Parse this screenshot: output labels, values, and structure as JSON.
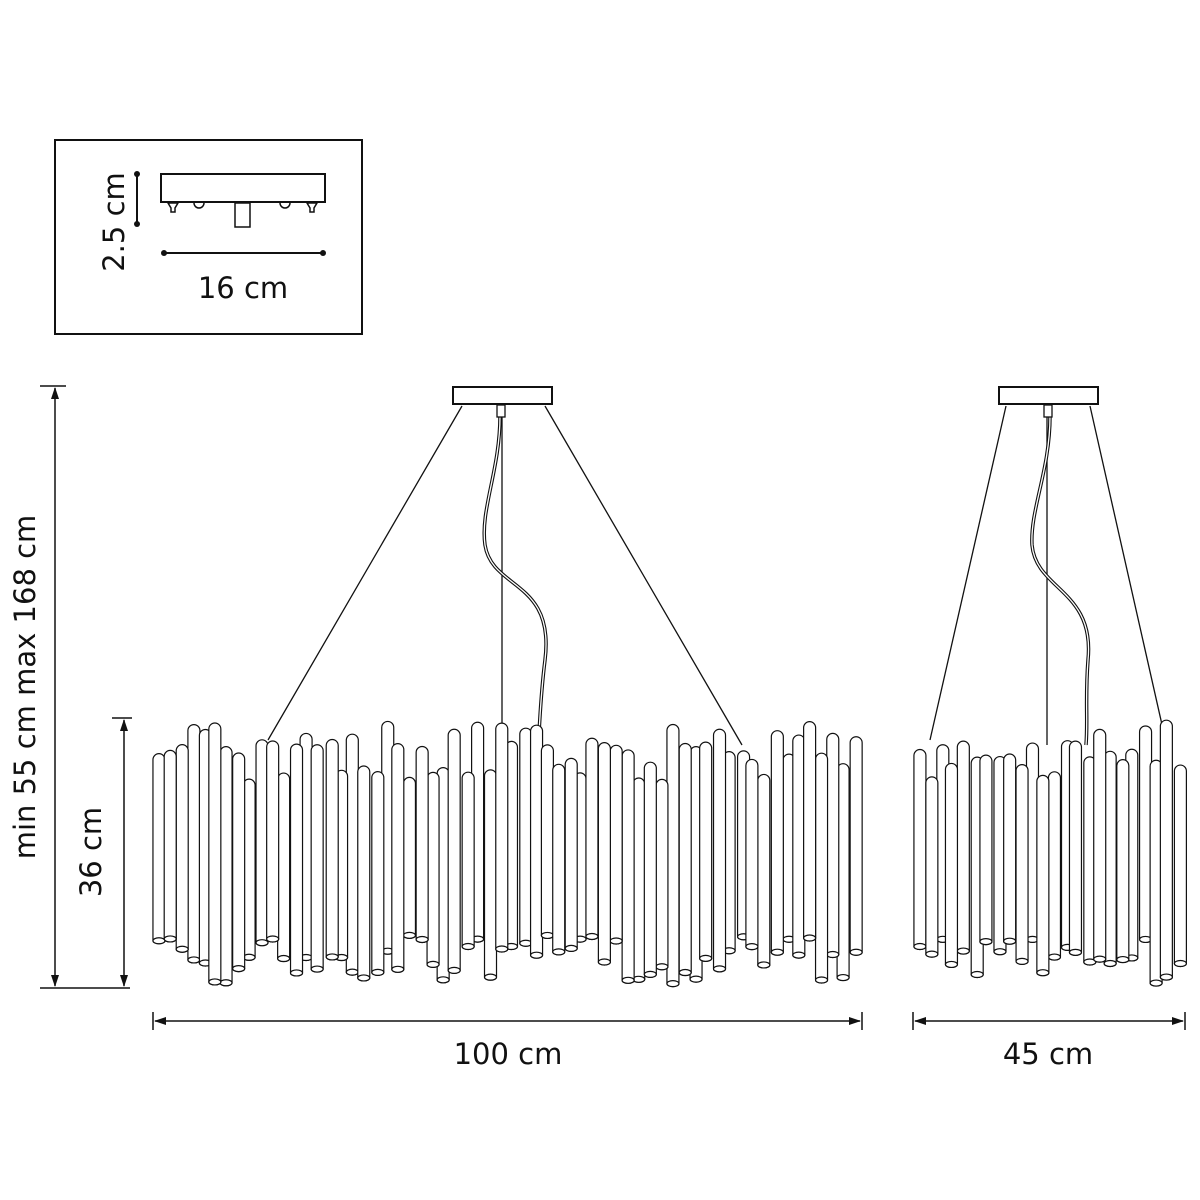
{
  "inset": {
    "height_label": "2.5 cm",
    "width_label": "16 cm"
  },
  "front_view": {
    "width_label": "100 cm",
    "body_height_label": "36 cm",
    "total_height_label": "min 55 cm max 168 cm"
  },
  "side_view": {
    "width_label": "45 cm"
  },
  "colors": {
    "line": "#111111",
    "background": "#ffffff"
  }
}
